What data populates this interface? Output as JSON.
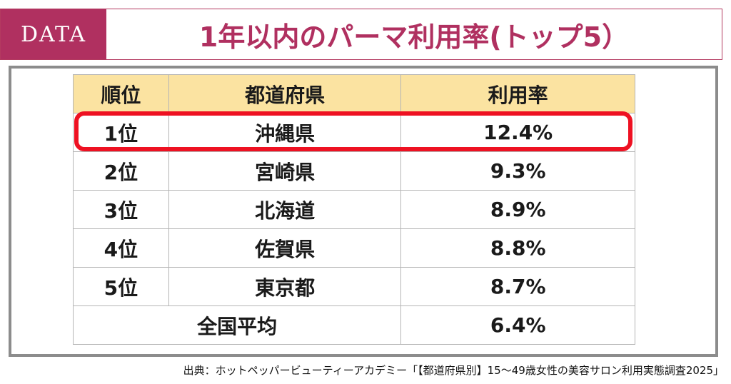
{
  "header": {
    "badge": "DATA",
    "title": "1年以内のパーマ利用率(トップ5）"
  },
  "table": {
    "headers": [
      "順位",
      "都道府県",
      "利用率"
    ],
    "rows": [
      {
        "rank": "1位",
        "prefecture": "沖縄県",
        "rate": "12.4%"
      },
      {
        "rank": "2位",
        "prefecture": "宮崎県",
        "rate": "9.3%"
      },
      {
        "rank": "3位",
        "prefecture": "北海道",
        "rate": "8.9%"
      },
      {
        "rank": "4位",
        "prefecture": "佐賀県",
        "rate": "8.8%"
      },
      {
        "rank": "5位",
        "prefecture": "東京都",
        "rate": "8.7%"
      }
    ],
    "average": {
      "label": "全国平均",
      "rate": "6.4%"
    }
  },
  "source": "出典：ホットペッパービューティーアカデミー「【都道府県別】15～49歳女性の美容サロン利用実態調査2025」",
  "colors": {
    "accent": "#b03060",
    "header_fill": "#fbe3a1",
    "highlight": "#ee1122"
  }
}
